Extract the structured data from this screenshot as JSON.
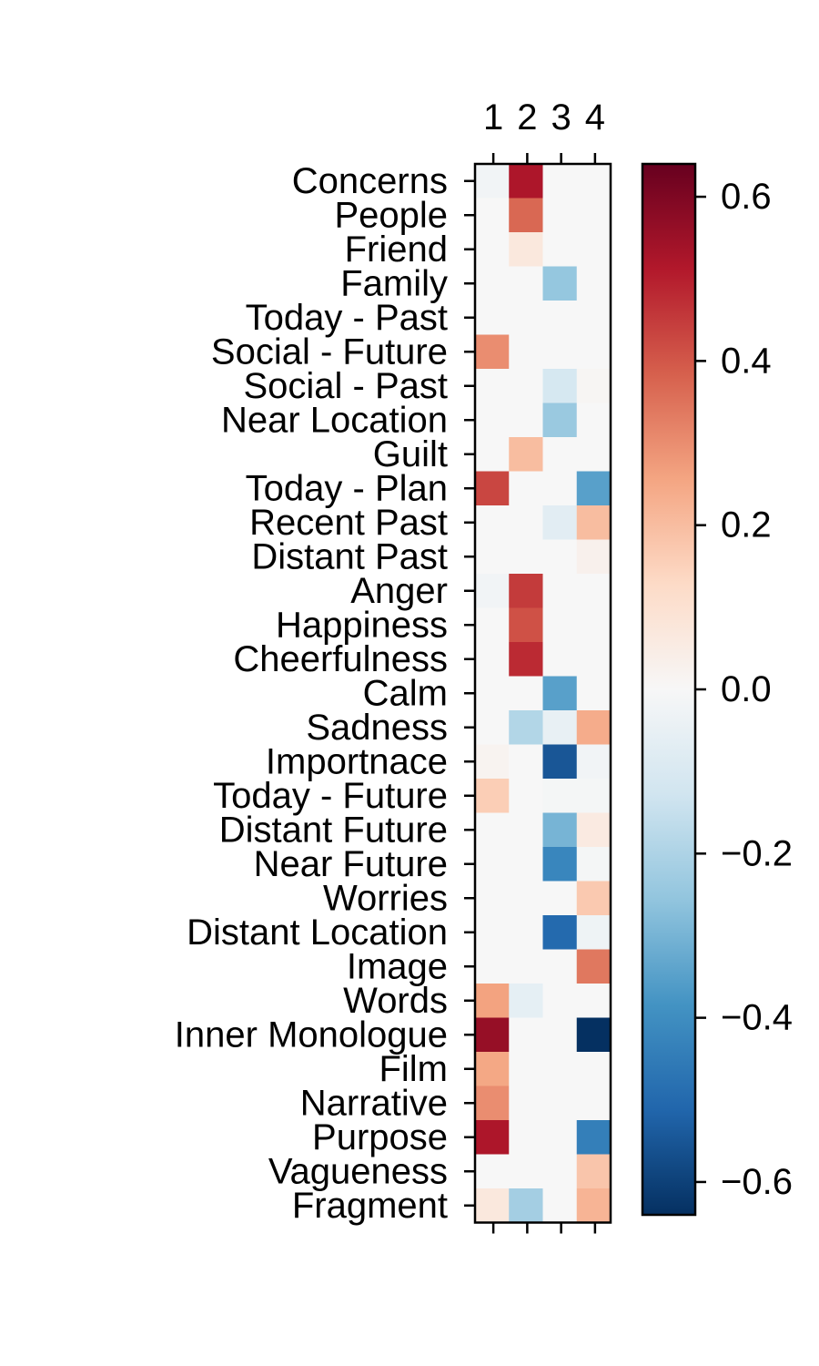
{
  "chart_data": {
    "type": "heatmap",
    "title": "",
    "xlabel": "",
    "ylabel": "",
    "columns": [
      "1",
      "2",
      "3",
      "4"
    ],
    "rows": [
      "Concerns",
      "People",
      "Friend",
      "Family",
      "Today - Past",
      "Social - Future",
      "Social - Past",
      "Near Location",
      "Guilt",
      "Today - Plan",
      "Recent Past",
      "Distant Past",
      "Anger",
      "Happiness",
      "Cheerfulness",
      "Calm",
      "Sadness",
      "Importnace",
      "Today - Future",
      "Distant Future",
      "Near Future",
      "Worries",
      "Distant Location",
      "Image",
      "Words",
      "Inner Monologue",
      "Film",
      "Narrative",
      "Purpose",
      "Vagueness",
      "Fragment"
    ],
    "values": [
      [
        -0.02,
        0.52,
        0.0,
        0.0
      ],
      [
        0.0,
        0.37,
        0.0,
        0.0
      ],
      [
        0.0,
        0.07,
        0.0,
        0.0
      ],
      [
        0.0,
        0.0,
        -0.25,
        0.0
      ],
      [
        0.0,
        0.0,
        0.0,
        0.0
      ],
      [
        0.3,
        0.0,
        0.0,
        0.0
      ],
      [
        0.0,
        0.0,
        -0.11,
        0.01
      ],
      [
        0.0,
        0.0,
        -0.24,
        0.0
      ],
      [
        0.0,
        0.2,
        0.0,
        0.0
      ],
      [
        0.43,
        0.0,
        0.0,
        -0.35
      ],
      [
        0.0,
        0.0,
        -0.07,
        0.2
      ],
      [
        0.0,
        0.0,
        0.0,
        0.03
      ],
      [
        -0.02,
        0.45,
        0.0,
        0.0
      ],
      [
        0.0,
        0.41,
        0.0,
        0.0
      ],
      [
        0.0,
        0.48,
        0.0,
        0.0
      ],
      [
        0.0,
        0.0,
        -0.35,
        0.0
      ],
      [
        0.0,
        -0.19,
        -0.05,
        0.24
      ],
      [
        0.02,
        0.0,
        -0.55,
        -0.02
      ],
      [
        0.16,
        0.0,
        -0.01,
        -0.01
      ],
      [
        0.0,
        0.0,
        -0.3,
        0.06
      ],
      [
        0.0,
        0.0,
        -0.42,
        -0.01
      ],
      [
        0.0,
        0.0,
        0.0,
        0.17
      ],
      [
        0.0,
        0.0,
        -0.5,
        -0.03
      ],
      [
        0.0,
        0.0,
        0.0,
        0.34
      ],
      [
        0.26,
        -0.06,
        0.0,
        0.0
      ],
      [
        0.56,
        0.0,
        0.0,
        -0.64
      ],
      [
        0.25,
        0.0,
        0.0,
        0.0
      ],
      [
        0.3,
        0.0,
        0.0,
        0.0
      ],
      [
        0.52,
        0.0,
        0.0,
        -0.44
      ],
      [
        0.0,
        0.0,
        0.0,
        0.18
      ],
      [
        0.07,
        -0.22,
        0.0,
        0.22
      ]
    ],
    "colormap": "RdBu_r",
    "vmin": -0.64,
    "vmax": 0.64,
    "colorbar_ticks": [
      0.6,
      0.4,
      0.2,
      0.0,
      -0.2,
      -0.4,
      -0.6
    ],
    "colorbar_tick_labels": [
      "0.6",
      "0.4",
      "0.2",
      "0.0",
      "−0.2",
      "−0.4",
      "−0.6"
    ],
    "x_ticks_position": "top",
    "grid": false,
    "legend": "colorbar-right"
  }
}
